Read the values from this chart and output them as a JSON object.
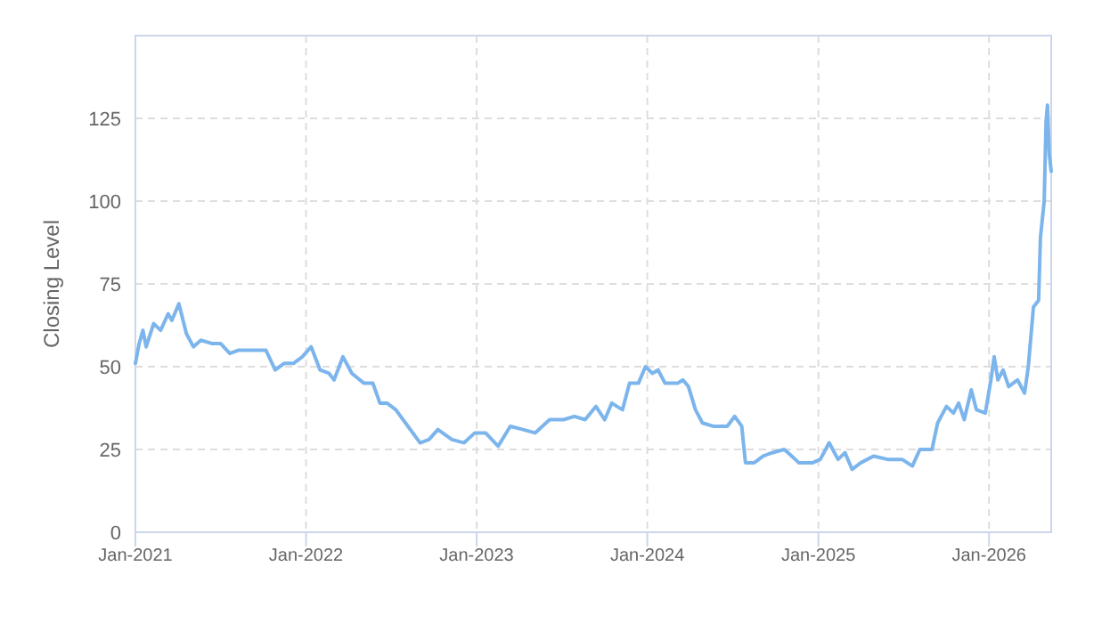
{
  "chart_data": {
    "type": "line",
    "ylabel": "Closing Level",
    "grid": true,
    "xlim": [
      "2021-01-01",
      "2026-05-14"
    ],
    "xticks": [
      {
        "value": "2021-01-01",
        "label": "Jan-2021"
      },
      {
        "value": "2022-01-01",
        "label": "Jan-2022"
      },
      {
        "value": "2023-01-01",
        "label": "Jan-2023"
      },
      {
        "value": "2024-01-01",
        "label": "Jan-2024"
      },
      {
        "value": "2025-01-01",
        "label": "Jan-2025"
      },
      {
        "value": "2026-01-01",
        "label": "Jan-2026"
      }
    ],
    "ylim": [
      0,
      150
    ],
    "yticks": [
      0,
      25,
      50,
      75,
      100,
      125
    ],
    "x": [
      "2021-01-01",
      "2021-01-09",
      "2021-01-17",
      "2021-01-24",
      "2021-02-09",
      "2021-02-24",
      "2021-03-12",
      "2021-03-20",
      "2021-04-04",
      "2021-04-20",
      "2021-05-05",
      "2021-05-21",
      "2021-06-13",
      "2021-07-02",
      "2021-07-22",
      "2021-08-10",
      "2021-08-30",
      "2021-10-07",
      "2021-10-27",
      "2021-11-15",
      "2021-12-05",
      "2021-12-24",
      "2022-01-12",
      "2022-01-31",
      "2022-02-19",
      "2022-03-02",
      "2022-03-21",
      "2022-04-09",
      "2022-05-05",
      "2022-05-24",
      "2022-06-08",
      "2022-06-23",
      "2022-07-12",
      "2022-08-07",
      "2022-09-02",
      "2022-09-21",
      "2022-10-10",
      "2022-11-09",
      "2022-12-05",
      "2022-12-28",
      "2023-01-20",
      "2023-02-16",
      "2023-03-14",
      "2023-04-10",
      "2023-05-06",
      "2023-06-06",
      "2023-07-06",
      "2023-07-29",
      "2023-08-21",
      "2023-09-13",
      "2023-10-02",
      "2023-10-17",
      "2023-10-28",
      "2023-11-09",
      "2023-11-24",
      "2023-12-13",
      "2023-12-28",
      "2024-01-12",
      "2024-01-24",
      "2024-02-08",
      "2024-03-06",
      "2024-03-17",
      "2024-03-29",
      "2024-04-13",
      "2024-04-28",
      "2024-05-21",
      "2024-06-20",
      "2024-07-06",
      "2024-07-21",
      "2024-07-29",
      "2024-08-17",
      "2024-09-05",
      "2024-09-24",
      "2024-10-20",
      "2024-11-05",
      "2024-11-20",
      "2024-12-20",
      "2025-01-05",
      "2025-01-24",
      "2025-02-12",
      "2025-02-27",
      "2025-03-14",
      "2025-04-02",
      "2025-04-29",
      "2025-05-29",
      "2025-06-29",
      "2025-07-21",
      "2025-08-06",
      "2025-09-01",
      "2025-09-13",
      "2025-10-02",
      "2025-10-17",
      "2025-10-28",
      "2025-11-09",
      "2025-11-24",
      "2025-12-05",
      "2025-12-24",
      "2026-01-05",
      "2026-01-12",
      "2026-01-20",
      "2026-01-31",
      "2026-02-12",
      "2026-03-03",
      "2026-03-18",
      "2026-03-26",
      "2026-04-06",
      "2026-04-17",
      "2026-04-21",
      "2026-04-29",
      "2026-05-03",
      "2026-05-06",
      "2026-05-10",
      "2026-05-14"
    ],
    "series": [
      {
        "color": "#7cb5ec",
        "values": [
          51,
          57,
          61,
          56,
          63,
          61,
          66,
          64,
          69,
          60,
          56,
          58,
          57,
          57,
          54,
          55,
          55,
          55,
          49,
          51,
          51,
          53,
          56,
          49,
          48,
          46,
          53,
          48,
          45,
          45,
          39,
          39,
          37,
          32,
          27,
          28,
          31,
          28,
          27,
          30,
          30,
          26,
          32,
          31,
          30,
          34,
          34,
          35,
          34,
          38,
          34,
          39,
          38,
          37,
          45,
          45,
          50,
          48,
          49,
          45,
          45,
          46,
          44,
          37,
          33,
          32,
          32,
          35,
          32,
          21,
          21,
          23,
          24,
          25,
          23,
          21,
          21,
          22,
          27,
          22,
          24,
          19,
          21,
          23,
          22,
          22,
          20,
          25,
          25,
          33,
          38,
          36,
          39,
          34,
          43,
          37,
          36,
          46,
          53,
          46,
          49,
          44,
          46,
          42,
          50,
          68,
          70,
          89,
          100,
          124,
          129,
          114,
          109
        ]
      }
    ]
  }
}
